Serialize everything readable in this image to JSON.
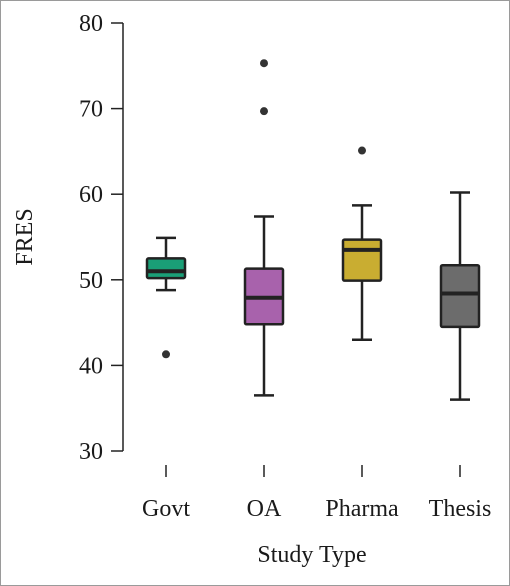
{
  "chart_data": {
    "type": "box",
    "title": "",
    "xlabel": "Study Type",
    "ylabel": "FRES",
    "ylim": [
      30,
      80
    ],
    "yticks": [
      30,
      40,
      50,
      60,
      70,
      80
    ],
    "grid": false,
    "categories": [
      "Govt",
      "OA",
      "Pharma",
      "Thesis"
    ],
    "boxes": [
      {
        "category": "Govt",
        "min": 48.8,
        "q1": 50.2,
        "median": 51.0,
        "q3": 52.5,
        "max": 54.9,
        "outliers": [
          41.3
        ],
        "color": "#1a9f77"
      },
      {
        "category": "OA",
        "min": 36.5,
        "q1": 44.8,
        "median": 47.9,
        "q3": 51.3,
        "max": 57.4,
        "outliers": [
          69.7,
          75.3
        ],
        "color": "#a862ac"
      },
      {
        "category": "Pharma",
        "min": 43.0,
        "q1": 49.9,
        "median": 53.5,
        "q3": 54.7,
        "max": 58.7,
        "outliers": [
          65.1
        ],
        "color": "#c9ad31"
      },
      {
        "category": "Thesis",
        "min": 36.0,
        "q1": 44.5,
        "median": 48.4,
        "q3": 51.7,
        "max": 60.2,
        "outliers": [],
        "color": "#6c6c6c"
      }
    ]
  }
}
